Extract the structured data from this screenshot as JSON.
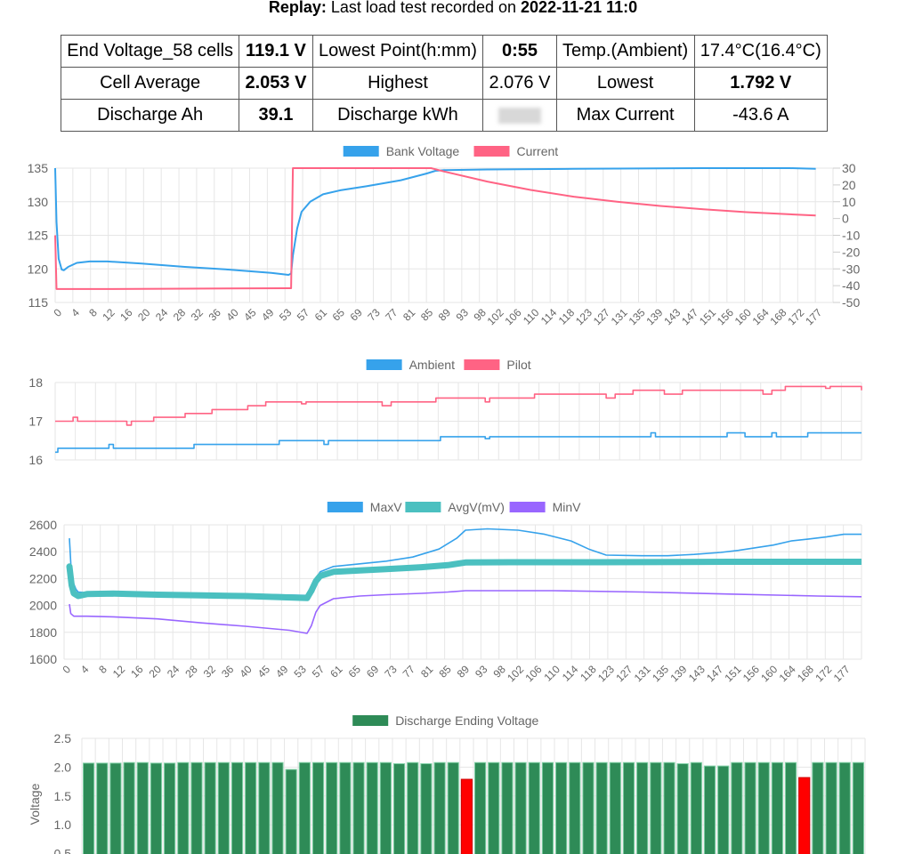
{
  "header": {
    "prefix": "Replay:",
    "text": "Last load test recorded on",
    "datetime": "2022-11-21 11:0"
  },
  "summary": {
    "rows": [
      [
        {
          "t": "End Voltage_58 cells"
        },
        {
          "t": "119.1 V",
          "b": true
        },
        {
          "t": "Lowest Point(h:mm)"
        },
        {
          "t": "0:55",
          "b": true
        },
        {
          "t": "Temp.(Ambient)"
        },
        {
          "t": "17.4°C(16.4°C)"
        }
      ],
      [
        {
          "t": "Cell Average"
        },
        {
          "t": "2.053 V",
          "b": true
        },
        {
          "t": "Highest"
        },
        {
          "t": "2.076 V"
        },
        {
          "t": "Lowest"
        },
        {
          "t": "1.792 V",
          "b": true
        }
      ],
      [
        {
          "t": "Discharge Ah"
        },
        {
          "t": "39.1",
          "b": true
        },
        {
          "t": "Discharge kWh"
        },
        {
          "t": "",
          "blur": true
        },
        {
          "t": "Max Current"
        },
        {
          "t": "-43.6 A"
        }
      ]
    ]
  },
  "colors": {
    "blue": "#36a2eb",
    "pink": "#ff6384",
    "teal": "#4bc0c0",
    "purple": "#9966ff",
    "green": "#2e8b57",
    "red": "#ff0000",
    "grid": "#e5e5e5"
  },
  "chart_data": [
    {
      "id": "voltage_current",
      "type": "line",
      "x_ticks": [
        "0",
        "4",
        "8",
        "12",
        "16",
        "20",
        "24",
        "28",
        "32",
        "36",
        "40",
        "45",
        "49",
        "53",
        "57",
        "61",
        "65",
        "69",
        "73",
        "77",
        "81",
        "85",
        "89",
        "93",
        "98",
        "102",
        "106",
        "110",
        "114",
        "118",
        "123",
        "127",
        "131",
        "135",
        "139",
        "143",
        "147",
        "151",
        "156",
        "160",
        "164",
        "168",
        "172",
        "177"
      ],
      "x_range": [
        0,
        180
      ],
      "ylim": [
        115,
        135
      ],
      "y_ticks": [
        115,
        120,
        125,
        130,
        135
      ],
      "y2lim": [
        -50,
        30
      ],
      "y2_ticks": [
        -50,
        -40,
        -30,
        -20,
        -10,
        0,
        10,
        20,
        30
      ],
      "legend": "top",
      "series": [
        {
          "name": "Bank Voltage",
          "axis": "left",
          "color": "#36a2eb",
          "points": [
            [
              0,
              135
            ],
            [
              0.3,
              127
            ],
            [
              0.8,
              121.5
            ],
            [
              1.5,
              119.9
            ],
            [
              2,
              119.8
            ],
            [
              3,
              120.3
            ],
            [
              5,
              120.9
            ],
            [
              8,
              121.1
            ],
            [
              12,
              121.1
            ],
            [
              20,
              120.8
            ],
            [
              30,
              120.3
            ],
            [
              40,
              119.9
            ],
            [
              50,
              119.4
            ],
            [
              54,
              119.1
            ],
            [
              54.6,
              119.3
            ],
            [
              55,
              122
            ],
            [
              56,
              126
            ],
            [
              57,
              128.5
            ],
            [
              59,
              130
            ],
            [
              62,
              131.1
            ],
            [
              66,
              131.7
            ],
            [
              72,
              132.3
            ],
            [
              80,
              133.2
            ],
            [
              86,
              134.2
            ],
            [
              88,
              134.6
            ],
            [
              90,
              134.7
            ],
            [
              100,
              134.8
            ],
            [
              120,
              134.9
            ],
            [
              150,
              135
            ],
            [
              170,
              135
            ],
            [
              176,
              134.9
            ]
          ]
        },
        {
          "name": "Current",
          "axis": "right",
          "color": "#ff6384",
          "points": [
            [
              0,
              -10
            ],
            [
              0.3,
              -42
            ],
            [
              2,
              -42
            ],
            [
              10,
              -42
            ],
            [
              30,
              -41.8
            ],
            [
              54,
              -41.5
            ],
            [
              54.6,
              -41.5
            ],
            [
              55,
              30
            ],
            [
              60,
              30
            ],
            [
              70,
              30
            ],
            [
              80,
              30
            ],
            [
              87,
              30
            ],
            [
              90,
              28
            ],
            [
              100,
              22
            ],
            [
              110,
              17
            ],
            [
              120,
              13
            ],
            [
              130,
              10
            ],
            [
              140,
              7.5
            ],
            [
              150,
              5.5
            ],
            [
              160,
              3.8
            ],
            [
              170,
              2.5
            ],
            [
              176,
              1.8
            ]
          ]
        }
      ]
    },
    {
      "id": "temperature",
      "type": "line",
      "x_range": [
        0,
        180
      ],
      "ylim": [
        16,
        18
      ],
      "y_ticks": [
        16,
        17,
        18
      ],
      "legend": "top",
      "series": [
        {
          "name": "Ambient",
          "color": "#36a2eb",
          "steps": [
            [
              0,
              16.2
            ],
            [
              0.6,
              16.3
            ],
            [
              12,
              16.4
            ],
            [
              13,
              16.3
            ],
            [
              30,
              16.3
            ],
            [
              31,
              16.4
            ],
            [
              50,
              16.5
            ],
            [
              60,
              16.4
            ],
            [
              61,
              16.5
            ],
            [
              86,
              16.6
            ],
            [
              96,
              16.55
            ],
            [
              97,
              16.6
            ],
            [
              133,
              16.7
            ],
            [
              134,
              16.6
            ],
            [
              150,
              16.7
            ],
            [
              154,
              16.6
            ],
            [
              160,
              16.7
            ],
            [
              161,
              16.6
            ],
            [
              168,
              16.7
            ],
            [
              180,
              16.7
            ]
          ]
        },
        {
          "name": "Pilot",
          "color": "#ff6384",
          "steps": [
            [
              0,
              17.0
            ],
            [
              4,
              17.1
            ],
            [
              5,
              17.0
            ],
            [
              16,
              16.9
            ],
            [
              17,
              17.0
            ],
            [
              22,
              17.1
            ],
            [
              29,
              17.2
            ],
            [
              35,
              17.3
            ],
            [
              43,
              17.4
            ],
            [
              47,
              17.5
            ],
            [
              55,
              17.45
            ],
            [
              56,
              17.5
            ],
            [
              73,
              17.4
            ],
            [
              75,
              17.5
            ],
            [
              85,
              17.6
            ],
            [
              96,
              17.5
            ],
            [
              97,
              17.6
            ],
            [
              107,
              17.7
            ],
            [
              123,
              17.6
            ],
            [
              125,
              17.7
            ],
            [
              129,
              17.8
            ],
            [
              136,
              17.7
            ],
            [
              140,
              17.8
            ],
            [
              158,
              17.7
            ],
            [
              160,
              17.8
            ],
            [
              163,
              17.9
            ],
            [
              172,
              17.85
            ],
            [
              173,
              17.9
            ],
            [
              180,
              17.8
            ]
          ]
        }
      ]
    },
    {
      "id": "cell_voltages",
      "type": "line",
      "x_ticks": [
        "0",
        "4",
        "8",
        "12",
        "16",
        "20",
        "24",
        "28",
        "32",
        "36",
        "40",
        "45",
        "49",
        "53",
        "57",
        "61",
        "65",
        "69",
        "73",
        "77",
        "81",
        "85",
        "89",
        "93",
        "98",
        "102",
        "106",
        "110",
        "114",
        "118",
        "123",
        "127",
        "131",
        "135",
        "139",
        "143",
        "147",
        "151",
        "156",
        "160",
        "164",
        "168",
        "172",
        "177"
      ],
      "x_range": [
        0,
        180
      ],
      "ylim": [
        1600,
        2600
      ],
      "y_ticks": [
        1600,
        1800,
        2000,
        2200,
        2400,
        2600
      ],
      "legend": "top",
      "series": [
        {
          "name": "MaxV",
          "color": "#36a2eb",
          "points": [
            [
              0,
              2500
            ],
            [
              0.5,
              2200
            ],
            [
              1.5,
              2120
            ],
            [
              2,
              2100
            ],
            [
              4,
              2095
            ],
            [
              10,
              2100
            ],
            [
              20,
              2095
            ],
            [
              30,
              2090
            ],
            [
              40,
              2085
            ],
            [
              54,
              2075
            ],
            [
              55,
              2110
            ],
            [
              56,
              2200
            ],
            [
              57,
              2250
            ],
            [
              60,
              2290
            ],
            [
              66,
              2310
            ],
            [
              72,
              2330
            ],
            [
              78,
              2360
            ],
            [
              84,
              2420
            ],
            [
              88,
              2500
            ],
            [
              90,
              2560
            ],
            [
              95,
              2570
            ],
            [
              102,
              2560
            ],
            [
              108,
              2530
            ],
            [
              114,
              2480
            ],
            [
              118,
              2420
            ],
            [
              122,
              2375
            ],
            [
              130,
              2370
            ],
            [
              136,
              2370
            ],
            [
              142,
              2380
            ],
            [
              148,
              2395
            ],
            [
              152,
              2410
            ],
            [
              156,
              2430
            ],
            [
              160,
              2450
            ],
            [
              164,
              2480
            ],
            [
              168,
              2495
            ],
            [
              172,
              2510
            ],
            [
              176,
              2530
            ],
            [
              180,
              2530
            ]
          ]
        },
        {
          "name": "AvgV(mV)",
          "color": "#4bc0c0",
          "thick": true,
          "points": [
            [
              0,
              2290
            ],
            [
              0.5,
              2150
            ],
            [
              1,
              2090
            ],
            [
              2,
              2070
            ],
            [
              4,
              2085
            ],
            [
              10,
              2088
            ],
            [
              20,
              2080
            ],
            [
              30,
              2075
            ],
            [
              40,
              2070
            ],
            [
              54,
              2055
            ],
            [
              55,
              2110
            ],
            [
              56,
              2180
            ],
            [
              57,
              2220
            ],
            [
              60,
              2250
            ],
            [
              66,
              2260
            ],
            [
              72,
              2270
            ],
            [
              80,
              2285
            ],
            [
              86,
              2300
            ],
            [
              90,
              2320
            ],
            [
              100,
              2322
            ],
            [
              120,
              2322
            ],
            [
              150,
              2325
            ],
            [
              180,
              2325
            ]
          ]
        },
        {
          "name": "MinV",
          "color": "#9966ff",
          "points": [
            [
              0,
              2010
            ],
            [
              0.3,
              1940
            ],
            [
              1,
              1920
            ],
            [
              4,
              1920
            ],
            [
              10,
              1915
            ],
            [
              20,
              1900
            ],
            [
              30,
              1870
            ],
            [
              40,
              1845
            ],
            [
              50,
              1815
            ],
            [
              54,
              1792
            ],
            [
              55,
              1850
            ],
            [
              56,
              1950
            ],
            [
              57,
              2000
            ],
            [
              60,
              2050
            ],
            [
              66,
              2070
            ],
            [
              72,
              2080
            ],
            [
              80,
              2090
            ],
            [
              86,
              2100
            ],
            [
              90,
              2110
            ],
            [
              110,
              2110
            ],
            [
              130,
              2100
            ],
            [
              150,
              2085
            ],
            [
              170,
              2070
            ],
            [
              180,
              2065
            ]
          ]
        }
      ]
    },
    {
      "id": "ending_voltage",
      "type": "bar",
      "ylabel": "Voltage",
      "ylim": [
        0,
        2.5
      ],
      "y_ticks": [
        "0.5",
        "1.0",
        "1.5",
        "2.0",
        "2.5"
      ],
      "legend": "top",
      "series": [
        {
          "name": "Discharge Ending Voltage",
          "color": "#2e8b57"
        }
      ],
      "values": [
        2.07,
        2.07,
        2.07,
        2.08,
        2.08,
        2.07,
        2.07,
        2.08,
        2.08,
        2.08,
        2.08,
        2.08,
        2.08,
        2.08,
        2.08,
        1.96,
        2.08,
        2.08,
        2.08,
        2.08,
        2.08,
        2.08,
        2.08,
        2.06,
        2.08,
        2.06,
        2.08,
        2.08,
        1.79,
        2.08,
        2.08,
        2.08,
        2.08,
        2.08,
        2.08,
        2.08,
        2.08,
        2.08,
        2.08,
        2.08,
        2.08,
        2.08,
        2.08,
        2.08,
        2.06,
        2.08,
        2.02,
        2.02,
        2.08,
        2.08,
        2.08,
        2.08,
        2.08,
        1.82,
        2.08,
        2.08,
        2.08,
        2.08
      ],
      "low_indices": [
        28,
        53
      ]
    }
  ]
}
